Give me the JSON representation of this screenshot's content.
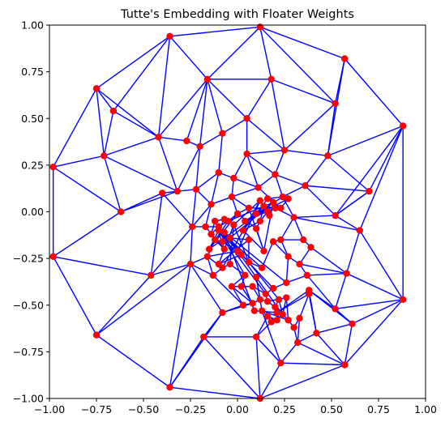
{
  "chart_data": {
    "type": "scatter",
    "title": "Tutte's Embedding with Floater Weights",
    "xlabel": "",
    "ylabel": "",
    "xlim": [
      -1.0,
      1.0
    ],
    "ylim": [
      -1.0,
      1.0
    ],
    "xticks": [
      "−1.00",
      "−0.75",
      "−0.50",
      "−0.25",
      "0.00",
      "0.25",
      "0.50",
      "0.75",
      "1.00"
    ],
    "yticks": [
      "−1.00",
      "−0.75",
      "−0.50",
      "−0.25",
      "0.00",
      "0.25",
      "0.50",
      "0.75",
      "1.00"
    ],
    "xtick_values": [
      -1.0,
      -0.75,
      -0.5,
      -0.25,
      0.0,
      0.25,
      0.5,
      0.75,
      1.0
    ],
    "ytick_values": [
      -1.0,
      -0.75,
      -0.5,
      -0.25,
      0.0,
      0.25,
      0.5,
      0.75,
      1.0
    ],
    "grid": false,
    "colors": {
      "edge": "#0000ff",
      "node": "#ff0000"
    },
    "nodes": [
      [
        0.12,
        0.99
      ],
      [
        0.57,
        0.82
      ],
      [
        0.88,
        0.46
      ],
      [
        0.88,
        -0.47
      ],
      [
        0.57,
        -0.82
      ],
      [
        0.12,
        -1.0
      ],
      [
        -0.36,
        -0.94
      ],
      [
        -0.75,
        -0.66
      ],
      [
        -0.98,
        -0.24
      ],
      [
        -0.98,
        0.24
      ],
      [
        -0.75,
        0.66
      ],
      [
        -0.36,
        0.94
      ],
      [
        -0.16,
        0.71
      ],
      [
        0.18,
        0.71
      ],
      [
        0.52,
        0.58
      ],
      [
        0.48,
        0.3
      ],
      [
        0.7,
        0.11
      ],
      [
        0.52,
        -0.02
      ],
      [
        0.65,
        -0.1
      ],
      [
        0.58,
        -0.33
      ],
      [
        0.52,
        -0.52
      ],
      [
        0.61,
        -0.6
      ],
      [
        0.42,
        -0.65
      ],
      [
        0.32,
        -0.7
      ],
      [
        0.23,
        -0.81
      ],
      [
        0.1,
        -0.67
      ],
      [
        -0.18,
        -0.67
      ],
      [
        -0.08,
        -0.54
      ],
      [
        -0.25,
        -0.28
      ],
      [
        -0.46,
        -0.34
      ],
      [
        -0.24,
        -0.08
      ],
      [
        -0.4,
        0.1
      ],
      [
        -0.62,
        0.0
      ],
      [
        -0.71,
        0.3
      ],
      [
        -0.66,
        0.54
      ],
      [
        -0.42,
        0.4
      ],
      [
        -0.27,
        0.38
      ],
      [
        -0.2,
        0.35
      ],
      [
        -0.08,
        0.42
      ],
      [
        0.05,
        0.5
      ],
      [
        0.05,
        0.31
      ],
      [
        0.25,
        0.33
      ],
      [
        0.36,
        0.14
      ],
      [
        0.2,
        0.2
      ],
      [
        0.11,
        0.13
      ],
      [
        -0.1,
        0.21
      ],
      [
        -0.02,
        0.18
      ],
      [
        -0.22,
        0.12
      ],
      [
        -0.32,
        0.11
      ],
      [
        -0.14,
        0.04
      ],
      [
        -0.03,
        0.08
      ],
      [
        0.06,
        0.02
      ],
      [
        0.16,
        0.07
      ],
      [
        0.24,
        0.08
      ],
      [
        0.3,
        -0.03
      ],
      [
        0.2,
        0.02
      ],
      [
        0.14,
        0.03
      ],
      [
        0.12,
        -0.05
      ],
      [
        0.1,
        -0.09
      ],
      [
        0.0,
        -0.01
      ],
      [
        -0.05,
        -0.05
      ],
      [
        -0.1,
        -0.08
      ],
      [
        -0.14,
        -0.12
      ],
      [
        -0.17,
        -0.08
      ],
      [
        -0.12,
        -0.15
      ],
      [
        -0.08,
        -0.16
      ],
      [
        -0.04,
        -0.14
      ],
      [
        0.06,
        -0.15
      ],
      [
        -0.16,
        -0.24
      ],
      [
        -0.13,
        -0.34
      ],
      [
        -0.08,
        -0.3
      ],
      [
        -0.04,
        -0.28
      ],
      [
        0.04,
        -0.34
      ],
      [
        0.06,
        -0.27
      ],
      [
        0.13,
        -0.3
      ],
      [
        0.19,
        -0.16
      ],
      [
        0.23,
        -0.15
      ],
      [
        0.27,
        -0.24
      ],
      [
        0.35,
        -0.15
      ],
      [
        0.39,
        -0.19
      ],
      [
        0.33,
        -0.28
      ],
      [
        0.37,
        -0.34
      ],
      [
        0.26,
        -0.38
      ],
      [
        0.19,
        -0.41
      ],
      [
        0.15,
        -0.44
      ],
      [
        0.08,
        -0.4
      ],
      [
        0.02,
        -0.4
      ],
      [
        -0.03,
        -0.4
      ],
      [
        0.03,
        -0.5
      ],
      [
        0.08,
        -0.49
      ],
      [
        0.12,
        -0.47
      ],
      [
        0.16,
        -0.48
      ],
      [
        0.2,
        -0.51
      ],
      [
        0.22,
        -0.47
      ],
      [
        0.24,
        -0.55
      ],
      [
        0.21,
        -0.58
      ],
      [
        0.18,
        -0.59
      ],
      [
        0.16,
        -0.56
      ],
      [
        0.13,
        -0.53
      ],
      [
        0.27,
        -0.58
      ],
      [
        0.3,
        -0.62
      ],
      [
        0.33,
        -0.57
      ],
      [
        0.38,
        -0.44
      ],
      [
        0.38,
        -0.42
      ],
      [
        0.21,
        -0.54
      ],
      [
        0.09,
        -0.53
      ],
      [
        0.26,
        -0.46
      ],
      [
        0.1,
        -0.35
      ],
      [
        -0.07,
        -0.11
      ],
      [
        -0.1,
        -0.1
      ],
      [
        -0.07,
        -0.04
      ],
      [
        -0.12,
        -0.05
      ],
      [
        -0.15,
        -0.2
      ],
      [
        -0.07,
        -0.2
      ],
      [
        0.0,
        -0.21
      ],
      [
        0.02,
        -0.23
      ],
      [
        -0.1,
        -0.28
      ],
      [
        -0.02,
        -0.07
      ],
      [
        0.12,
        0.06
      ],
      [
        0.17,
        -0.02
      ],
      [
        0.16,
        0.0
      ],
      [
        0.19,
        0.05
      ],
      [
        0.23,
        0.02
      ],
      [
        0.27,
        0.07
      ],
      [
        0.1,
        -0.01
      ],
      [
        0.04,
        -0.05
      ],
      [
        0.03,
        -0.1
      ],
      [
        0.14,
        -0.21
      ]
    ],
    "edges": [
      [
        0,
        1
      ],
      [
        1,
        2
      ],
      [
        2,
        3
      ],
      [
        3,
        4
      ],
      [
        4,
        5
      ],
      [
        5,
        6
      ],
      [
        6,
        7
      ],
      [
        7,
        8
      ],
      [
        8,
        9
      ],
      [
        9,
        10
      ],
      [
        10,
        11
      ],
      [
        11,
        0
      ],
      [
        0,
        12
      ],
      [
        0,
        13
      ],
      [
        0,
        14
      ],
      [
        1,
        14
      ],
      [
        1,
        15
      ],
      [
        2,
        15
      ],
      [
        2,
        16
      ],
      [
        2,
        17
      ],
      [
        2,
        18
      ],
      [
        3,
        18
      ],
      [
        3,
        19
      ],
      [
        3,
        20
      ],
      [
        3,
        21
      ],
      [
        4,
        21
      ],
      [
        4,
        22
      ],
      [
        4,
        23
      ],
      [
        4,
        24
      ],
      [
        5,
        24
      ],
      [
        5,
        25
      ],
      [
        5,
        26
      ],
      [
        6,
        26
      ],
      [
        6,
        27
      ],
      [
        6,
        28
      ],
      [
        7,
        28
      ],
      [
        7,
        29
      ],
      [
        8,
        29
      ],
      [
        8,
        32
      ],
      [
        9,
        32
      ],
      [
        9,
        33
      ],
      [
        10,
        33
      ],
      [
        10,
        34
      ],
      [
        11,
        34
      ],
      [
        11,
        35
      ],
      [
        11,
        12
      ],
      [
        10,
        35
      ],
      [
        12,
        13
      ],
      [
        13,
        14
      ],
      [
        14,
        15
      ],
      [
        15,
        16
      ],
      [
        16,
        17
      ],
      [
        17,
        18
      ],
      [
        18,
        19
      ],
      [
        19,
        20
      ],
      [
        20,
        21
      ],
      [
        21,
        22
      ],
      [
        22,
        23
      ],
      [
        23,
        24
      ],
      [
        24,
        25
      ],
      [
        25,
        26
      ],
      [
        26,
        27
      ],
      [
        27,
        28
      ],
      [
        28,
        29
      ],
      [
        29,
        31
      ],
      [
        31,
        32
      ],
      [
        32,
        33
      ],
      [
        33,
        34
      ],
      [
        34,
        35
      ],
      [
        35,
        12
      ],
      [
        12,
        36
      ],
      [
        12,
        37
      ],
      [
        12,
        38
      ],
      [
        12,
        39
      ],
      [
        13,
        39
      ],
      [
        13,
        41
      ],
      [
        14,
        41
      ],
      [
        15,
        41
      ],
      [
        15,
        42
      ],
      [
        16,
        42
      ],
      [
        16,
        17
      ],
      [
        17,
        42
      ],
      [
        17,
        54
      ],
      [
        18,
        54
      ],
      [
        19,
        79
      ],
      [
        19,
        80
      ],
      [
        19,
        81
      ],
      [
        20,
        81
      ],
      [
        20,
        103
      ],
      [
        21,
        103
      ],
      [
        22,
        103
      ],
      [
        22,
        102
      ],
      [
        23,
        101
      ],
      [
        23,
        100
      ],
      [
        24,
        98
      ],
      [
        24,
        25
      ],
      [
        25,
        97
      ],
      [
        25,
        96
      ],
      [
        26,
        27
      ],
      [
        27,
        88
      ],
      [
        27,
        89
      ],
      [
        28,
        69
      ],
      [
        28,
        68
      ],
      [
        28,
        30
      ],
      [
        29,
        30
      ],
      [
        30,
        31
      ],
      [
        31,
        48
      ],
      [
        32,
        48
      ],
      [
        33,
        48
      ],
      [
        33,
        35
      ],
      [
        35,
        36
      ],
      [
        35,
        48
      ],
      [
        36,
        37
      ],
      [
        37,
        38
      ],
      [
        37,
        48
      ],
      [
        37,
        47
      ],
      [
        38,
        39
      ],
      [
        38,
        45
      ],
      [
        39,
        40
      ],
      [
        39,
        41
      ],
      [
        40,
        41
      ],
      [
        40,
        43
      ],
      [
        40,
        44
      ],
      [
        40,
        46
      ],
      [
        41,
        43
      ],
      [
        42,
        43
      ],
      [
        43,
        44
      ],
      [
        42,
        53
      ],
      [
        43,
        53
      ],
      [
        44,
        46
      ],
      [
        44,
        122
      ],
      [
        44,
        50
      ],
      [
        45,
        46
      ],
      [
        45,
        47
      ],
      [
        45,
        49
      ],
      [
        46,
        50
      ],
      [
        47,
        48
      ],
      [
        47,
        49
      ],
      [
        47,
        30
      ],
      [
        49,
        50
      ],
      [
        49,
        63
      ],
      [
        49,
        30
      ],
      [
        50,
        51
      ],
      [
        50,
        59
      ],
      [
        51,
        122
      ],
      [
        51,
        59
      ],
      [
        51,
        127
      ],
      [
        52,
        53
      ],
      [
        52,
        122
      ],
      [
        52,
        124
      ],
      [
        53,
        125
      ],
      [
        53,
        54
      ],
      [
        54,
        55
      ],
      [
        54,
        78
      ],
      [
        54,
        76
      ],
      [
        55,
        125
      ],
      [
        55,
        56
      ],
      [
        56,
        124
      ],
      [
        56,
        57
      ],
      [
        57,
        58
      ],
      [
        57,
        126
      ],
      [
        58,
        59
      ],
      [
        58,
        127
      ],
      [
        58,
        128
      ],
      [
        59,
        60
      ],
      [
        60,
        61
      ],
      [
        60,
        121
      ],
      [
        60,
        112
      ],
      [
        61,
        62
      ],
      [
        61,
        63
      ],
      [
        62,
        64
      ],
      [
        62,
        113
      ],
      [
        63,
        113
      ],
      [
        63,
        30
      ],
      [
        64,
        65
      ],
      [
        64,
        68
      ],
      [
        65,
        66
      ],
      [
        65,
        114
      ],
      [
        66,
        67
      ],
      [
        66,
        115
      ],
      [
        66,
        121
      ],
      [
        67,
        128
      ],
      [
        67,
        129
      ],
      [
        67,
        116
      ],
      [
        67,
        73
      ],
      [
        68,
        69
      ],
      [
        68,
        70
      ],
      [
        68,
        114
      ],
      [
        69,
        70
      ],
      [
        69,
        88
      ],
      [
        70,
        71
      ],
      [
        70,
        118
      ],
      [
        71,
        72
      ],
      [
        71,
        117
      ],
      [
        72,
        109
      ],
      [
        72,
        87
      ],
      [
        72,
        86
      ],
      [
        73,
        74
      ],
      [
        73,
        117
      ],
      [
        74,
        75
      ],
      [
        74,
        129
      ],
      [
        74,
        109
      ],
      [
        75,
        76
      ],
      [
        75,
        77
      ],
      [
        75,
        129
      ],
      [
        76,
        77
      ],
      [
        76,
        78
      ],
      [
        77,
        80
      ],
      [
        77,
        82
      ],
      [
        78,
        79
      ],
      [
        79,
        80
      ],
      [
        80,
        81
      ],
      [
        81,
        82
      ],
      [
        82,
        83
      ],
      [
        82,
        108
      ],
      [
        83,
        84
      ],
      [
        83,
        109
      ],
      [
        84,
        85
      ],
      [
        84,
        91
      ],
      [
        85,
        86
      ],
      [
        85,
        90
      ],
      [
        86,
        87
      ],
      [
        86,
        89
      ],
      [
        87,
        88
      ],
      [
        87,
        89
      ],
      [
        88,
        89
      ],
      [
        89,
        90
      ],
      [
        90,
        91
      ],
      [
        90,
        107
      ],
      [
        91,
        92
      ],
      [
        91,
        106
      ],
      [
        92,
        93
      ],
      [
        92,
        99
      ],
      [
        93,
        94
      ],
      [
        93,
        108
      ],
      [
        94,
        95
      ],
      [
        94,
        106
      ],
      [
        95,
        96
      ],
      [
        95,
        97
      ],
      [
        96,
        97
      ],
      [
        97,
        98
      ],
      [
        98,
        99
      ],
      [
        99,
        100
      ],
      [
        100,
        101
      ],
      [
        101,
        102
      ],
      [
        102,
        104
      ],
      [
        103,
        104
      ],
      [
        104,
        105
      ],
      [
        105,
        108
      ],
      [
        106,
        99
      ],
      [
        107,
        98
      ],
      [
        108,
        94
      ],
      [
        109,
        84
      ],
      [
        110,
        111
      ],
      [
        110,
        112
      ],
      [
        111,
        113
      ],
      [
        111,
        62
      ],
      [
        112,
        121
      ],
      [
        112,
        59
      ],
      [
        113,
        64
      ],
      [
        114,
        115
      ],
      [
        115,
        116
      ],
      [
        116,
        117
      ],
      [
        117,
        118
      ],
      [
        118,
        114
      ],
      [
        119,
        120
      ],
      [
        120,
        57
      ],
      [
        121,
        127
      ],
      [
        122,
        123
      ],
      [
        123,
        125
      ],
      [
        124,
        126
      ],
      [
        125,
        55
      ],
      [
        126,
        127
      ],
      [
        127,
        128
      ],
      [
        128,
        129
      ],
      [
        129,
        57
      ]
    ]
  }
}
